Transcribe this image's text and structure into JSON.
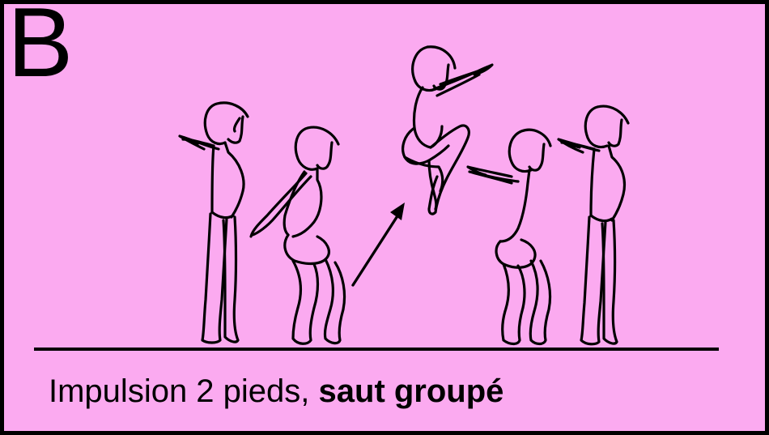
{
  "panel": {
    "letter": "B",
    "background": "#fbaaf0",
    "border": "#000000"
  },
  "caption": {
    "normal": "Impulsion 2 pieds, ",
    "bold": "saut groupé"
  },
  "figures": [
    "standing-arms-forward",
    "crouching-arms-back",
    "tuck-jump-airborne",
    "landing-crouch-arms-forward",
    "standing-arms-forward-end"
  ],
  "direction_arrow": "up-right"
}
